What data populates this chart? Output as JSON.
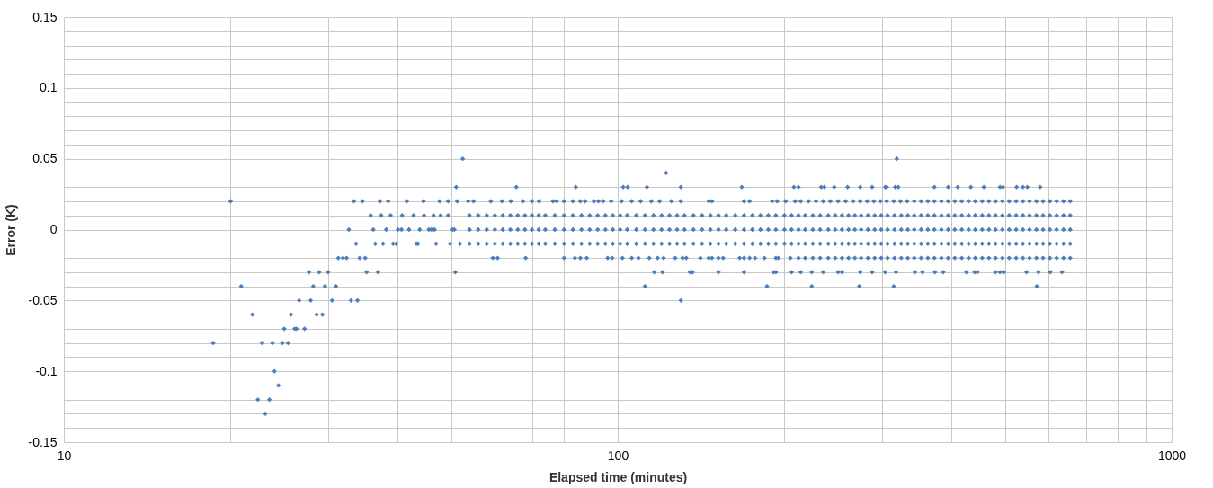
{
  "chart_data": {
    "type": "scatter",
    "xlabel": "Elapsed time (minutes)",
    "ylabel": "Error (K)",
    "log": "x",
    "grid": true,
    "legend": false,
    "marker": "diamond",
    "xlim": [
      10,
      1000
    ],
    "ylim": [
      -0.15,
      0.15
    ],
    "xticks": [
      10,
      {
        "value": 20,
        "label": null
      },
      {
        "value": 30,
        "label": null
      },
      {
        "value": 40,
        "label": null
      },
      {
        "value": 50,
        "label": null
      },
      {
        "value": 60,
        "label": null
      },
      {
        "value": 70,
        "label": null
      },
      {
        "value": 80,
        "label": null
      },
      {
        "value": 90,
        "label": null
      },
      100,
      {
        "value": 200,
        "label": null
      },
      {
        "value": 300,
        "label": null
      },
      {
        "value": 400,
        "label": null
      },
      {
        "value": 500,
        "label": null
      },
      {
        "value": 600,
        "label": null
      },
      {
        "value": 700,
        "label": null
      },
      {
        "value": 800,
        "label": null
      },
      {
        "value": 900,
        "label": null
      },
      1000
    ],
    "yticks": [
      -0.15,
      {
        "value": -0.14,
        "label": null
      },
      {
        "value": -0.13,
        "label": null
      },
      {
        "value": -0.12,
        "label": null
      },
      {
        "value": -0.11,
        "label": null
      },
      -0.1,
      {
        "value": -0.09,
        "label": null
      },
      {
        "value": -0.08,
        "label": null
      },
      {
        "value": -0.07,
        "label": null
      },
      {
        "value": -0.06,
        "label": null
      },
      -0.05,
      {
        "value": -0.04,
        "label": null
      },
      {
        "value": -0.03,
        "label": null
      },
      {
        "value": -0.02,
        "label": null
      },
      {
        "value": -0.01,
        "label": null
      },
      0,
      {
        "value": 0.01,
        "label": null
      },
      {
        "value": 0.02,
        "label": null
      },
      {
        "value": 0.03,
        "label": null
      },
      {
        "value": 0.04,
        "label": null
      },
      0.05,
      {
        "value": 0.06,
        "label": null
      },
      {
        "value": 0.07,
        "label": null
      },
      {
        "value": 0.08,
        "label": null
      },
      {
        "value": 0.09,
        "label": null
      },
      0.1,
      {
        "value": 0.11,
        "label": null
      },
      {
        "value": 0.12,
        "label": null
      },
      {
        "value": 0.13,
        "label": null
      },
      {
        "value": 0.14,
        "label": null
      },
      0.15
    ],
    "series": [
      {
        "color": "#4a7ebb",
        "x": [
          23.1
        ],
        "values": [
          -0.13
        ]
      },
      {
        "color": "#4a7ebb",
        "x": [
          22.4,
          23.5
        ],
        "values": [
          -0.12,
          -0.12
        ]
      },
      {
        "color": "#4a7ebb",
        "x": [
          24.4
        ],
        "values": [
          -0.11
        ]
      },
      {
        "color": "#4a7ebb",
        "x": [
          24.0
        ],
        "values": [
          -0.1
        ]
      },
      {
        "color": "#4a7ebb",
        "x": [
          18.6,
          22.8,
          23.8,
          24.8,
          25.4
        ],
        "values": [
          -0.08,
          -0.08,
          -0.08,
          -0.08,
          -0.08
        ]
      },
      {
        "color": "#4a7ebb",
        "x": [
          25.0,
          26.1,
          26.3,
          27.2
        ],
        "values": [
          -0.07,
          -0.07,
          -0.07,
          -0.07
        ]
      },
      {
        "color": "#4a7ebb",
        "x": [
          21.9,
          25.7,
          28.6,
          29.3
        ],
        "values": [
          -0.06,
          -0.06,
          -0.06,
          -0.06
        ]
      },
      {
        "color": "#4a7ebb",
        "x": [
          26.6,
          27.9,
          30.5,
          33.0,
          33.9,
          130
        ],
        "values": [
          -0.05,
          -0.05,
          -0.05,
          -0.05,
          -0.05,
          -0.05
        ]
      },
      {
        "color": "#4a7ebb",
        "x": [
          20.9,
          28.2,
          29.6,
          31.0,
          112,
          186,
          224,
          273,
          315,
          571
        ],
        "values": [
          -0.04,
          -0.04,
          -0.04,
          -0.04,
          -0.04,
          -0.04,
          -0.04,
          -0.04,
          -0.04,
          -0.04
        ]
      },
      {
        "color": "#4a7ebb",
        "x": [
          27.7,
          28.9,
          30.0,
          35.2,
          36.9,
          50.9,
          116.4,
          120.5,
          135,
          136.5,
          152,
          169,
          191,
          193,
          206,
          214,
          224,
          235,
          250,
          254,
          274,
          288,
          304,
          318,
          344,
          355,
          374,
          387,
          426,
          441,
          446,
          481,
          490,
          498,
          547,
          575,
          604,
          634
        ],
        "values": [
          -0.03,
          -0.03,
          -0.03,
          -0.03,
          -0.03,
          -0.03,
          -0.03,
          -0.03,
          -0.03,
          -0.03,
          -0.03,
          -0.03,
          -0.03,
          -0.03,
          -0.03,
          -0.03,
          -0.03,
          -0.03,
          -0.03,
          -0.03,
          -0.03,
          -0.03,
          -0.03,
          -0.03,
          -0.03,
          -0.03,
          -0.03,
          -0.03,
          -0.03,
          -0.03,
          -0.03,
          -0.03,
          -0.03,
          -0.03,
          -0.03,
          -0.03,
          -0.03,
          -0.03
        ]
      },
      {
        "color": "#4a7ebb",
        "x": [
          31.3,
          31.9,
          32.4,
          34.2,
          35.0,
          59.5,
          60.7,
          68.2,
          80.0,
          83.7,
          85.6,
          87.9,
          95.9,
          97.7,
          102,
          106,
          109,
          114,
          118,
          121,
          127,
          131,
          133,
          141,
          146,
          148,
          152,
          155,
          166,
          169,
          173,
          177,
          184,
          193,
          195,
          205,
          212,
          218,
          225,
          232,
          240,
          247,
          254,
          261,
          268,
          275,
          283,
          291,
          299,
          307,
          316,
          325,
          334,
          343,
          353,
          363,
          373,
          384,
          395,
          406,
          418,
          430,
          442,
          455,
          468,
          481,
          495,
          509,
          524,
          539,
          554,
          570,
          586,
          603,
          620,
          638,
          656
        ],
        "values": [
          -0.02,
          -0.02,
          -0.02,
          -0.02,
          -0.02,
          -0.02,
          -0.02,
          -0.02,
          -0.02,
          -0.02,
          -0.02,
          -0.02,
          -0.02,
          -0.02,
          -0.02,
          -0.02,
          -0.02,
          -0.02,
          -0.02,
          -0.02,
          -0.02,
          -0.02,
          -0.02,
          -0.02,
          -0.02,
          -0.02,
          -0.02,
          -0.02,
          -0.02,
          -0.02,
          -0.02,
          -0.02,
          -0.02,
          -0.02,
          -0.02,
          -0.02,
          -0.02,
          -0.02,
          -0.02,
          -0.02,
          -0.02,
          -0.02,
          -0.02,
          -0.02,
          -0.02,
          -0.02,
          -0.02,
          -0.02,
          -0.02,
          -0.02,
          -0.02,
          -0.02,
          -0.02,
          -0.02,
          -0.02,
          -0.02,
          -0.02,
          -0.02,
          -0.02,
          -0.02,
          -0.02,
          -0.02,
          -0.02,
          -0.02,
          -0.02,
          -0.02,
          -0.02,
          -0.02,
          -0.02,
          -0.02,
          -0.02,
          -0.02,
          -0.02,
          -0.02,
          -0.02,
          -0.02,
          -0.02
        ]
      },
      {
        "color": "#4a7ebb",
        "x": [
          33.7,
          36.5,
          37.7,
          39.3,
          39.8,
          43.3,
          43.6,
          47.0,
          49.8,
          51.9,
          54,
          56,
          58,
          60,
          62,
          64,
          66,
          68,
          70,
          72,
          74,
          77,
          80,
          83,
          86,
          89,
          92,
          95,
          98,
          101,
          104,
          108,
          112,
          116,
          120,
          124,
          128,
          132,
          137,
          142,
          147,
          152,
          157,
          163,
          169,
          175,
          181,
          187,
          193,
          200,
          206,
          212,
          218,
          225,
          232,
          240,
          247,
          254,
          261,
          268,
          275,
          283,
          291,
          299,
          307,
          316,
          325,
          334,
          343,
          353,
          363,
          373,
          384,
          395,
          406,
          418,
          430,
          442,
          455,
          468,
          481,
          495,
          509,
          524,
          539,
          554,
          570,
          586,
          603,
          620,
          638,
          656
        ],
        "values": [
          -0.01,
          -0.01,
          -0.01,
          -0.01,
          -0.01,
          -0.01,
          -0.01,
          -0.01,
          -0.01,
          -0.01,
          -0.01,
          -0.01,
          -0.01,
          -0.01,
          -0.01,
          -0.01,
          -0.01,
          -0.01,
          -0.01,
          -0.01,
          -0.01,
          -0.01,
          -0.01,
          -0.01,
          -0.01,
          -0.01,
          -0.01,
          -0.01,
          -0.01,
          -0.01,
          -0.01,
          -0.01,
          -0.01,
          -0.01,
          -0.01,
          -0.01,
          -0.01,
          -0.01,
          -0.01,
          -0.01,
          -0.01,
          -0.01,
          -0.01,
          -0.01,
          -0.01,
          -0.01,
          -0.01,
          -0.01,
          -0.01,
          -0.01,
          -0.01,
          -0.01,
          -0.01,
          -0.01,
          -0.01,
          -0.01,
          -0.01,
          -0.01,
          -0.01,
          -0.01,
          -0.01,
          -0.01,
          -0.01,
          -0.01,
          -0.01,
          -0.01,
          -0.01,
          -0.01,
          -0.01,
          -0.01,
          -0.01,
          -0.01,
          -0.01,
          -0.01,
          -0.01,
          -0.01,
          -0.01,
          -0.01,
          -0.01,
          -0.01,
          -0.01,
          -0.01,
          -0.01,
          -0.01,
          -0.01,
          -0.01,
          -0.01,
          -0.01,
          -0.01,
          -0.01,
          -0.01,
          -0.01
        ]
      },
      {
        "color": "#4a7ebb",
        "x": [
          32.7,
          36.2,
          38.2,
          40.1,
          40.7,
          42.0,
          43.9,
          45.6,
          46.1,
          46.7,
          50.3,
          50.7,
          54,
          56,
          58,
          60,
          62,
          64,
          66,
          68,
          70,
          72,
          74,
          77,
          80,
          83,
          86,
          89,
          92,
          95,
          98,
          101,
          104,
          108,
          112,
          116,
          120,
          124,
          128,
          132,
          137,
          142,
          147,
          152,
          157,
          163,
          169,
          175,
          181,
          187,
          193,
          200,
          206,
          212,
          218,
          225,
          232,
          240,
          247,
          254,
          261,
          268,
          275,
          283,
          291,
          299,
          307,
          316,
          325,
          334,
          343,
          353,
          363,
          373,
          384,
          395,
          406,
          418,
          430,
          442,
          455,
          468,
          481,
          495,
          509,
          524,
          539,
          554,
          570,
          586,
          603,
          620,
          638,
          656
        ],
        "values": [
          0,
          0,
          0,
          0,
          0,
          0,
          0,
          0,
          0,
          0,
          0,
          0,
          0,
          0,
          0,
          0,
          0,
          0,
          0,
          0,
          0,
          0,
          0,
          0,
          0,
          0,
          0,
          0,
          0,
          0,
          0,
          0,
          0,
          0,
          0,
          0,
          0,
          0,
          0,
          0,
          0,
          0,
          0,
          0,
          0,
          0,
          0,
          0,
          0,
          0,
          0,
          0,
          0,
          0,
          0,
          0,
          0,
          0,
          0,
          0,
          0,
          0,
          0,
          0,
          0,
          0,
          0,
          0,
          0,
          0,
          0,
          0,
          0,
          0,
          0,
          0,
          0,
          0,
          0,
          0,
          0,
          0,
          0,
          0,
          0,
          0,
          0,
          0,
          0,
          0,
          0,
          0,
          0,
          0
        ]
      },
      {
        "color": "#4a7ebb",
        "x": [
          35.8,
          37.4,
          38.9,
          40.8,
          42.8,
          44.7,
          46.5,
          47.9,
          49.4,
          54,
          56,
          58,
          60,
          62,
          64,
          66,
          68,
          70,
          72,
          74,
          77,
          80,
          83,
          86,
          89,
          92,
          95,
          98,
          101,
          104,
          108,
          112,
          116,
          120,
          124,
          128,
          132,
          137,
          142,
          147,
          152,
          157,
          163,
          169,
          175,
          181,
          187,
          193,
          200,
          206,
          212,
          218,
          225,
          232,
          240,
          247,
          254,
          261,
          268,
          275,
          283,
          291,
          299,
          307,
          316,
          325,
          334,
          343,
          353,
          363,
          373,
          384,
          395,
          406,
          418,
          430,
          442,
          455,
          468,
          481,
          495,
          509,
          524,
          539,
          554,
          570,
          586,
          603,
          620,
          638,
          656
        ],
        "values": [
          0.01,
          0.01,
          0.01,
          0.01,
          0.01,
          0.01,
          0.01,
          0.01,
          0.01,
          0.01,
          0.01,
          0.01,
          0.01,
          0.01,
          0.01,
          0.01,
          0.01,
          0.01,
          0.01,
          0.01,
          0.01,
          0.01,
          0.01,
          0.01,
          0.01,
          0.01,
          0.01,
          0.01,
          0.01,
          0.01,
          0.01,
          0.01,
          0.01,
          0.01,
          0.01,
          0.01,
          0.01,
          0.01,
          0.01,
          0.01,
          0.01,
          0.01,
          0.01,
          0.01,
          0.01,
          0.01,
          0.01,
          0.01,
          0.01,
          0.01,
          0.01,
          0.01,
          0.01,
          0.01,
          0.01,
          0.01,
          0.01,
          0.01,
          0.01,
          0.01,
          0.01,
          0.01,
          0.01,
          0.01,
          0.01,
          0.01,
          0.01,
          0.01,
          0.01,
          0.01,
          0.01,
          0.01,
          0.01,
          0.01,
          0.01,
          0.01,
          0.01,
          0.01,
          0.01,
          0.01,
          0.01,
          0.01,
          0.01,
          0.01,
          0.01,
          0.01,
          0.01,
          0.01,
          0.01,
          0.01,
          0.01
        ]
      },
      {
        "color": "#4a7ebb",
        "x": [
          20.0,
          33.4,
          34.6,
          37.2,
          38.5,
          41.6,
          44.6,
          47.7,
          49.4,
          51.3,
          53.7,
          54.9,
          59.0,
          61.8,
          64.1,
          67.4,
          70.0,
          72.1,
          76.4,
          77.6,
          80.0,
          83.0,
          85.6,
          87.3,
          90.6,
          92.3,
          94.1,
          97.3,
          101.6,
          106,
          110,
          115,
          119,
          125,
          130,
          146,
          148,
          169,
          173,
          190,
          194,
          201,
          209,
          214,
          221,
          228,
          235,
          242,
          250,
          258,
          266,
          274,
          282,
          290,
          298,
          306,
          315,
          324,
          333,
          343,
          353,
          363,
          373,
          384,
          395,
          406,
          418,
          430,
          442,
          455,
          468,
          481,
          495,
          509,
          524,
          539,
          554,
          570,
          586,
          603,
          620,
          638,
          656
        ],
        "values": [
          0.02,
          0.02,
          0.02,
          0.02,
          0.02,
          0.02,
          0.02,
          0.02,
          0.02,
          0.02,
          0.02,
          0.02,
          0.02,
          0.02,
          0.02,
          0.02,
          0.02,
          0.02,
          0.02,
          0.02,
          0.02,
          0.02,
          0.02,
          0.02,
          0.02,
          0.02,
          0.02,
          0.02,
          0.02,
          0.02,
          0.02,
          0.02,
          0.02,
          0.02,
          0.02,
          0.02,
          0.02,
          0.02,
          0.02,
          0.02,
          0.02,
          0.02,
          0.02,
          0.02,
          0.02,
          0.02,
          0.02,
          0.02,
          0.02,
          0.02,
          0.02,
          0.02,
          0.02,
          0.02,
          0.02,
          0.02,
          0.02,
          0.02,
          0.02,
          0.02,
          0.02,
          0.02,
          0.02,
          0.02,
          0.02,
          0.02,
          0.02,
          0.02,
          0.02,
          0.02,
          0.02,
          0.02,
          0.02,
          0.02,
          0.02,
          0.02,
          0.02,
          0.02,
          0.02,
          0.02,
          0.02,
          0.02,
          0.02
        ]
      },
      {
        "color": "#4a7ebb",
        "x": [
          51.1,
          65.6,
          84.0,
          102.3,
          104.2,
          112.9,
          130,
          167.5,
          208,
          212,
          233,
          236,
          246,
          260,
          274,
          288,
          304,
          306,
          317,
          321,
          373,
          395,
          411,
          434,
          458,
          490,
          496,
          525,
          539,
          549,
          579
        ],
        "values": [
          0.03,
          0.03,
          0.03,
          0.03,
          0.03,
          0.03,
          0.03,
          0.03,
          0.03,
          0.03,
          0.03,
          0.03,
          0.03,
          0.03,
          0.03,
          0.03,
          0.03,
          0.03,
          0.03,
          0.03,
          0.03,
          0.03,
          0.03,
          0.03,
          0.03,
          0.03,
          0.03,
          0.03,
          0.03,
          0.03,
          0.03
        ]
      },
      {
        "color": "#4a7ebb",
        "x": [
          122.3
        ],
        "values": [
          0.04
        ]
      },
      {
        "color": "#4a7ebb",
        "x": [
          52.5,
          319
        ],
        "values": [
          0.05,
          0.05
        ]
      }
    ]
  }
}
